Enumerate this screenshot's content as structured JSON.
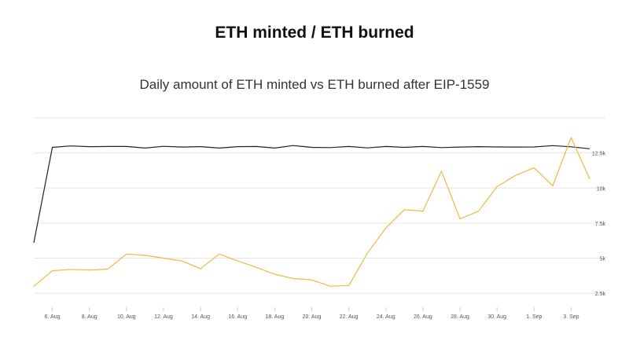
{
  "heading": "ETH minted / ETH burned",
  "chart_data": {
    "type": "line",
    "title": "Daily amount of ETH minted vs ETH burned after EIP-1559",
    "xlabel": "",
    "ylabel": "",
    "x": [
      "2021-08-05",
      "2021-08-06",
      "2021-08-07",
      "2021-08-08",
      "2021-08-09",
      "2021-08-10",
      "2021-08-11",
      "2021-08-12",
      "2021-08-13",
      "2021-08-14",
      "2021-08-15",
      "2021-08-16",
      "2021-08-17",
      "2021-08-18",
      "2021-08-19",
      "2021-08-20",
      "2021-08-21",
      "2021-08-22",
      "2021-08-23",
      "2021-08-24",
      "2021-08-25",
      "2021-08-26",
      "2021-08-27",
      "2021-08-28",
      "2021-08-29",
      "2021-08-30",
      "2021-08-31",
      "2021-09-01",
      "2021-09-02",
      "2021-09-03",
      "2021-09-04"
    ],
    "x_tick_labels": [
      "6. Aug",
      "8. Aug",
      "10. Aug",
      "12. Aug",
      "14. Aug",
      "16. Aug",
      "18. Aug",
      "20. Aug",
      "22. Aug",
      "24. Aug",
      "26. Aug",
      "28. Aug",
      "30. Aug",
      "1. Sep",
      "3. Sep"
    ],
    "y_tick_labels": [
      "2.5k",
      "5k",
      "7.5k",
      "10k",
      "12.5k"
    ],
    "ylim": [
      1500,
      15000
    ],
    "grid": true,
    "series": [
      {
        "color": "#222222",
        "values": [
          6100,
          12900,
          13000,
          12950,
          12960,
          12960,
          12850,
          12970,
          12920,
          12950,
          12850,
          12950,
          12960,
          12850,
          13030,
          12900,
          12880,
          12960,
          12860,
          12960,
          12900,
          12960,
          12880,
          12920,
          12950,
          12930,
          12920,
          12930,
          13020,
          12940,
          12800
        ]
      },
      {
        "color": "#f5b642",
        "values": [
          3000,
          4100,
          4200,
          4150,
          4220,
          5300,
          5200,
          5000,
          4800,
          4250,
          5300,
          4800,
          4350,
          3850,
          3550,
          3450,
          3000,
          3050,
          5350,
          7150,
          8450,
          8350,
          11200,
          7800,
          8350,
          10100,
          10900,
          11450,
          10150,
          13600,
          10650
        ]
      }
    ]
  }
}
